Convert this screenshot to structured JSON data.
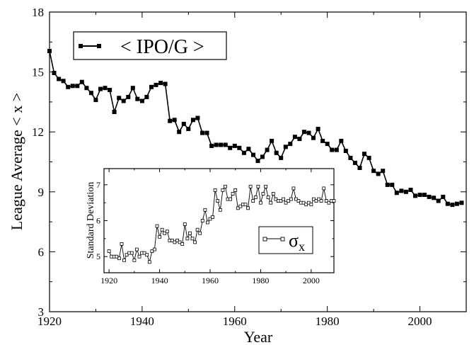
{
  "chart_data": [
    {
      "type": "line",
      "xlabel": "Year",
      "ylabel": "League Average < x >",
      "xlim": [
        1920,
        2010
      ],
      "ylim": [
        3,
        18
      ],
      "x_ticks": [
        1920,
        1940,
        1960,
        1980,
        2000
      ],
      "y_ticks": [
        3,
        6,
        9,
        12,
        15,
        18
      ],
      "legend_position": "top-left",
      "series": [
        {
          "name": "< IPO/G >",
          "marker": "filled-square",
          "color": "#000000",
          "x": [
            1920,
            1921,
            1922,
            1923,
            1924,
            1925,
            1926,
            1927,
            1928,
            1929,
            1930,
            1931,
            1932,
            1933,
            1934,
            1935,
            1936,
            1937,
            1938,
            1939,
            1940,
            1941,
            1942,
            1943,
            1944,
            1945,
            1946,
            1947,
            1948,
            1949,
            1950,
            1951,
            1952,
            1953,
            1954,
            1955,
            1956,
            1957,
            1958,
            1959,
            1960,
            1961,
            1962,
            1963,
            1964,
            1965,
            1966,
            1967,
            1968,
            1969,
            1970,
            1971,
            1972,
            1973,
            1974,
            1975,
            1976,
            1977,
            1978,
            1979,
            1980,
            1981,
            1982,
            1983,
            1984,
            1985,
            1986,
            1987,
            1988,
            1989,
            1990,
            1991,
            1992,
            1993,
            1994,
            1995,
            1996,
            1997,
            1998,
            1999,
            2000,
            2001,
            2002,
            2003,
            2004,
            2005,
            2006,
            2007,
            2008,
            2009
          ],
          "y": [
            16.05,
            14.95,
            14.65,
            14.55,
            14.25,
            14.3,
            14.3,
            14.5,
            14.2,
            13.95,
            13.6,
            14.15,
            14.2,
            14.1,
            13.0,
            13.7,
            13.55,
            13.75,
            14.2,
            13.65,
            13.55,
            13.75,
            14.25,
            14.35,
            14.45,
            14.4,
            12.55,
            12.6,
            12.0,
            12.4,
            12.15,
            12.6,
            12.7,
            11.95,
            11.95,
            11.3,
            11.35,
            11.35,
            11.35,
            11.2,
            11.3,
            11.2,
            10.95,
            11.15,
            10.85,
            10.55,
            10.75,
            11.1,
            11.55,
            10.95,
            10.7,
            11.25,
            11.4,
            11.75,
            11.65,
            12.0,
            11.95,
            11.7,
            12.15,
            11.55,
            11.4,
            11.1,
            11.1,
            11.55,
            11.05,
            10.7,
            10.45,
            10.2,
            10.9,
            10.7,
            10.05,
            9.9,
            10.05,
            9.35,
            9.35,
            8.95,
            9.05,
            9.0,
            9.1,
            8.8,
            8.85,
            8.85,
            8.75,
            8.7,
            8.55,
            8.75,
            8.4,
            8.35,
            8.4,
            8.45
          ]
        }
      ]
    },
    {
      "type": "line",
      "xlabel": "",
      "ylabel": "Standard Deviation",
      "xlim": [
        1918,
        2009
      ],
      "ylim": [
        4.55,
        7.45
      ],
      "x_ticks": [
        1920,
        1940,
        1960,
        1980,
        2000
      ],
      "y_ticks": [
        5,
        6,
        7
      ],
      "legend_position": "bottom-right",
      "series": [
        {
          "name": "σx",
          "marker": "open-square",
          "color": "#000000",
          "x": [
            1920,
            1921,
            1922,
            1923,
            1924,
            1925,
            1926,
            1927,
            1928,
            1929,
            1930,
            1931,
            1932,
            1933,
            1934,
            1935,
            1936,
            1937,
            1938,
            1939,
            1940,
            1941,
            1942,
            1943,
            1944,
            1945,
            1946,
            1947,
            1948,
            1949,
            1950,
            1951,
            1952,
            1953,
            1954,
            1955,
            1956,
            1957,
            1958,
            1959,
            1960,
            1961,
            1962,
            1963,
            1964,
            1965,
            1966,
            1967,
            1968,
            1969,
            1970,
            1971,
            1972,
            1973,
            1974,
            1975,
            1976,
            1977,
            1978,
            1979,
            1980,
            1981,
            1982,
            1983,
            1984,
            1985,
            1986,
            1987,
            1988,
            1989,
            1990,
            1991,
            1992,
            1993,
            1994,
            1995,
            1996,
            1997,
            1998,
            1999,
            2000,
            2001,
            2002,
            2003,
            2004,
            2005,
            2006,
            2007,
            2008,
            2009
          ],
          "y": [
            5.15,
            5.0,
            5.0,
            5.0,
            4.95,
            5.35,
            4.9,
            5.05,
            5.1,
            5.1,
            4.9,
            5.2,
            5.0,
            5.1,
            5.1,
            5.05,
            4.85,
            5.15,
            5.2,
            5.85,
            5.55,
            5.75,
            5.65,
            5.7,
            5.45,
            5.45,
            5.4,
            5.45,
            5.4,
            5.35,
            5.9,
            5.5,
            5.65,
            5.5,
            5.4,
            5.75,
            5.65,
            6.0,
            6.3,
            5.95,
            6.05,
            6.1,
            6.85,
            6.55,
            6.3,
            6.85,
            6.95,
            6.6,
            6.6,
            6.75,
            6.85,
            6.35,
            6.4,
            6.45,
            6.45,
            6.35,
            6.95,
            6.55,
            6.65,
            6.95,
            6.5,
            6.75,
            6.95,
            6.65,
            6.5,
            6.75,
            6.6,
            6.55,
            6.55,
            6.6,
            6.5,
            6.55,
            6.6,
            6.9,
            6.6,
            6.55,
            6.5,
            6.5,
            6.45,
            6.5,
            6.45,
            6.6,
            6.55,
            6.6,
            6.55,
            6.9,
            6.55,
            6.5,
            6.55,
            6.55
          ]
        }
      ]
    }
  ]
}
